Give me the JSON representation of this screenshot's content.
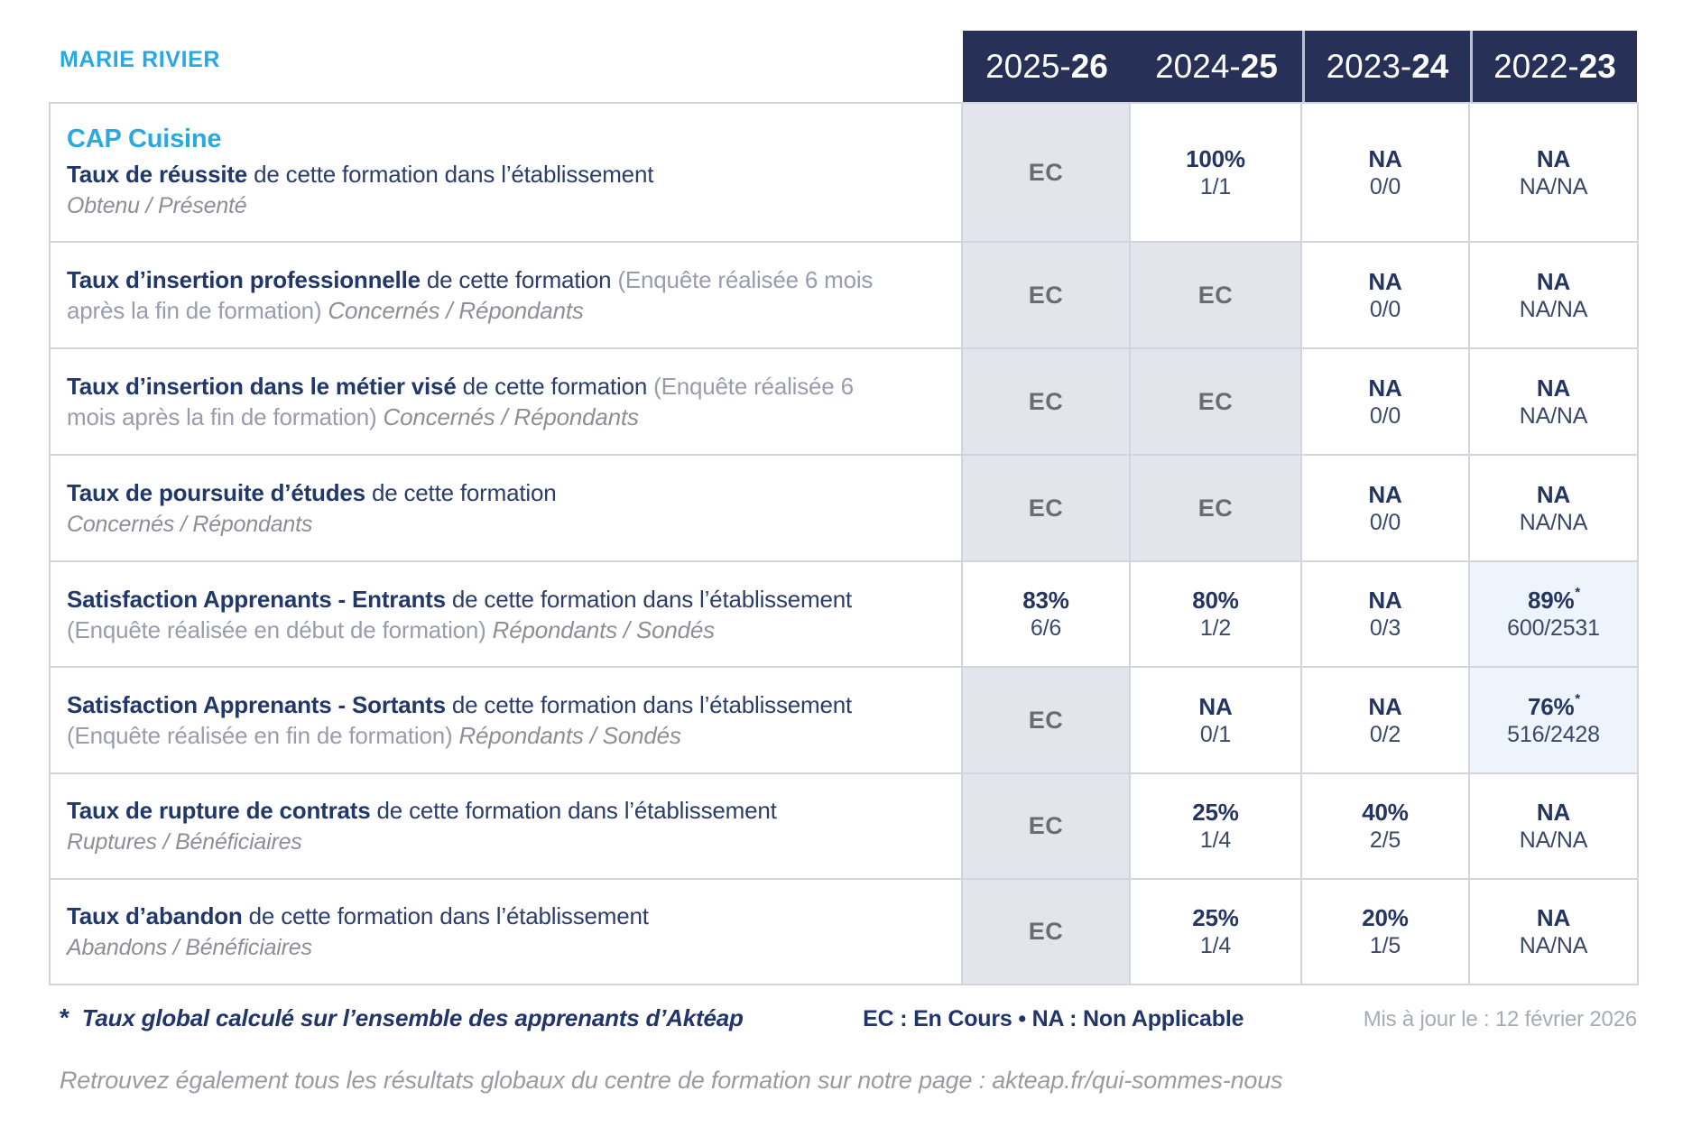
{
  "page": {
    "school_name": "MARIE RIVIER",
    "program": "CAP Cuisine"
  },
  "colors": {
    "accent_blue": "#2AA8E2",
    "header_navy": "#273158",
    "ec_cell_bg": "#E4E4ED",
    "highlight_cell_bg": "#EDF4FB",
    "grid_line": "#D4D4DE"
  },
  "columns": [
    {
      "prefix": "2025-",
      "bold": "26"
    },
    {
      "prefix": "2024-",
      "bold": "25"
    },
    {
      "prefix": "2023-",
      "bold": "24"
    },
    {
      "prefix": "2022-",
      "bold": "23"
    }
  ],
  "rows": [
    {
      "title": "Taux de réussite",
      "mid": "de cette formation dans l’établissement",
      "sub_block": "Obtenu / Présenté",
      "cells": [
        {
          "value": "EC"
        },
        {
          "value": "100%",
          "detail": "1/1"
        },
        {
          "value": "NA",
          "detail": "0/0"
        },
        {
          "value": "NA",
          "detail": "NA/NA"
        }
      ]
    },
    {
      "title": "Taux d’insertion professionnelle",
      "mid": "de cette formation",
      "paren": "(Enquête réalisée 6 mois après la fin de formation)",
      "sub_inline": "Concernés / Répondants",
      "cells": [
        {
          "value": "EC"
        },
        {
          "value": "EC"
        },
        {
          "value": "NA",
          "detail": "0/0"
        },
        {
          "value": "NA",
          "detail": "NA/NA"
        }
      ]
    },
    {
      "title": "Taux d’insertion dans le métier visé",
      "mid": "de cette formation",
      "paren": "(Enquête réalisée 6 mois après la fin de formation)",
      "sub_inline": "Concernés / Répondants",
      "cells": [
        {
          "value": "EC"
        },
        {
          "value": "EC"
        },
        {
          "value": "NA",
          "detail": "0/0"
        },
        {
          "value": "NA",
          "detail": "NA/NA"
        }
      ]
    },
    {
      "title": "Taux de poursuite d’études",
      "mid": "de cette formation",
      "sub_block": "Concernés / Répondants",
      "cells": [
        {
          "value": "EC"
        },
        {
          "value": "EC"
        },
        {
          "value": "NA",
          "detail": "0/0"
        },
        {
          "value": "NA",
          "detail": "NA/NA"
        }
      ]
    },
    {
      "title": "Satisfaction Apprenants - Entrants",
      "mid": "de cette formation dans l’établissement",
      "paren": "(Enquête réalisée en début de formation)",
      "sub_inline": "Répondants / Sondés",
      "cells": [
        {
          "value": "83%",
          "detail": "6/6"
        },
        {
          "value": "80%",
          "detail": "1/2"
        },
        {
          "value": "NA",
          "detail": "0/3"
        },
        {
          "value": "89%",
          "star": "*",
          "detail": "600/2531"
        }
      ]
    },
    {
      "title": "Satisfaction Apprenants - Sortants",
      "mid": "de cette formation dans l’établissement",
      "paren": "(Enquête réalisée en fin de formation)",
      "sub_inline": "Répondants / Sondés",
      "cells": [
        {
          "value": "EC"
        },
        {
          "value": "NA",
          "detail": "0/1"
        },
        {
          "value": "NA",
          "detail": "0/2"
        },
        {
          "value": "76%",
          "star": "*",
          "detail": "516/2428"
        }
      ]
    },
    {
      "title": "Taux de rupture de contrats",
      "mid": "de cette formation dans l’établissement",
      "sub_block": "Ruptures / Bénéficiaires",
      "cells": [
        {
          "value": "EC"
        },
        {
          "value": "25%",
          "detail": "1/4"
        },
        {
          "value": "40%",
          "detail": "2/5"
        },
        {
          "value": "NA",
          "detail": "NA/NA"
        }
      ]
    },
    {
      "title": "Taux d’abandon",
      "mid": "de cette formation dans l’établissement",
      "sub_block": "Abandons / Bénéficiaires",
      "cells": [
        {
          "value": "EC"
        },
        {
          "value": "25%",
          "detail": "1/4"
        },
        {
          "value": "20%",
          "detail": "1/5"
        },
        {
          "value": "NA",
          "detail": "NA/NA"
        }
      ]
    }
  ],
  "footer": {
    "star": "*",
    "note": "Taux global calculé sur l’ensemble des apprenants d’Aktéap",
    "legend": "EC : En Cours  •  NA : Non Applicable",
    "updated": "Mis à jour le : 12 février 2026",
    "link_line": "Retrouvez également tous les résultats globaux du centre de formation sur notre page : akteap.fr/qui-sommes-nous"
  }
}
